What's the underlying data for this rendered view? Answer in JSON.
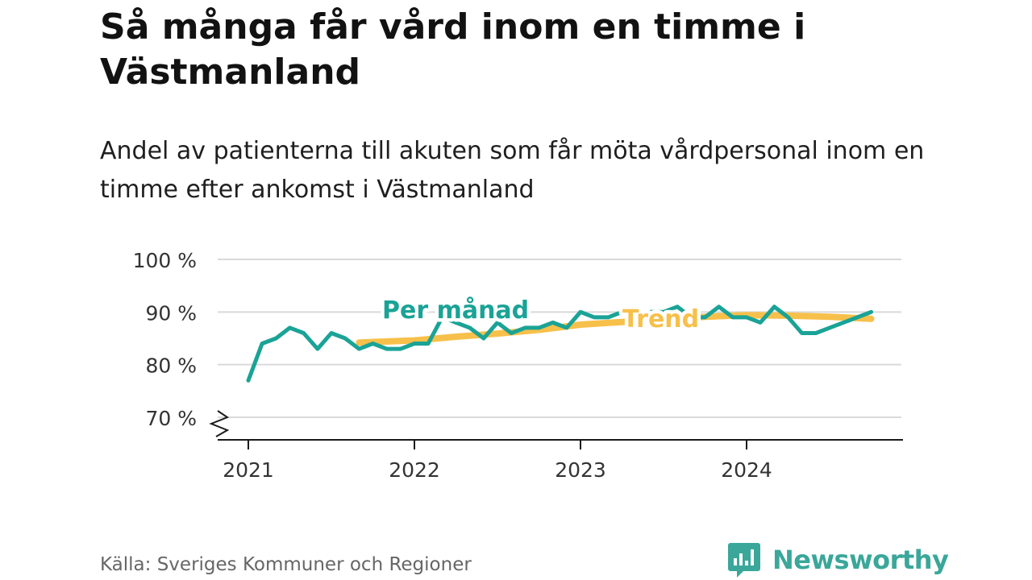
{
  "title": "Så många får vård inom en timme i Västmanland",
  "subtitle": "Andel av patienterna till akuten som får möta vårdpersonal inom en timme efter ankomst i Västmanland",
  "source": "Källa: Sveriges Kommuner och Regioner",
  "brand": {
    "name": "Newsworthy",
    "logo_icon": "newsworthy-logo-icon"
  },
  "colors": {
    "monthly": "#1aa396",
    "trend": "#f7c04a",
    "grid": "#d9d9d9",
    "axis": "#1a1a1a"
  },
  "chart_data": {
    "type": "line",
    "title": "Så många får vård inom en timme i Västmanland",
    "xlabel": "",
    "ylabel": "",
    "ylim": [
      70,
      100
    ],
    "y_ticks": [
      70,
      80,
      90,
      100
    ],
    "y_tick_labels": [
      "70 %",
      "80 %",
      "90 %",
      "100 %"
    ],
    "y_axis_break": true,
    "x_ticks": [
      2021,
      2022,
      2023,
      2024
    ],
    "x_tick_labels": [
      "2021",
      "2022",
      "2023",
      "2024"
    ],
    "grid": true,
    "legend": "inline labels",
    "series": [
      {
        "name": "Per månad",
        "x": [
          2021.0,
          2021.083,
          2021.167,
          2021.25,
          2021.333,
          2021.417,
          2021.5,
          2021.583,
          2021.667,
          2021.75,
          2021.833,
          2021.917,
          2022.0,
          2022.083,
          2022.167,
          2022.25,
          2022.333,
          2022.417,
          2022.5,
          2022.583,
          2022.667,
          2022.75,
          2022.833,
          2022.917,
          2023.0,
          2023.083,
          2023.167,
          2023.25,
          2023.333,
          2023.417,
          2023.5,
          2023.583,
          2023.667,
          2023.75,
          2023.833,
          2023.917,
          2024.0,
          2024.083,
          2024.167,
          2024.25,
          2024.333,
          2024.417,
          2024.5,
          2024.583,
          2024.667,
          2024.75
        ],
        "values": [
          77,
          84,
          85,
          87,
          86,
          83,
          86,
          85,
          83,
          84,
          83,
          83,
          84,
          84,
          89,
          88,
          87,
          85,
          88,
          86,
          87,
          87,
          88,
          87,
          90,
          89,
          89,
          90,
          89,
          90,
          90,
          91,
          89,
          89,
          91,
          89,
          89,
          88,
          91,
          89,
          86,
          86,
          87,
          88,
          89,
          90
        ]
      },
      {
        "name": "Trend",
        "x": [
          2021.667,
          2022.0,
          2022.25,
          2022.5,
          2022.75,
          2023.0,
          2023.25,
          2023.5,
          2023.75,
          2024.0,
          2024.25,
          2024.5,
          2024.75
        ],
        "values": [
          84.2,
          84.6,
          85.3,
          85.9,
          86.6,
          87.6,
          88.1,
          88.6,
          89.1,
          89.4,
          89.3,
          89.1,
          88.7
        ]
      }
    ]
  }
}
